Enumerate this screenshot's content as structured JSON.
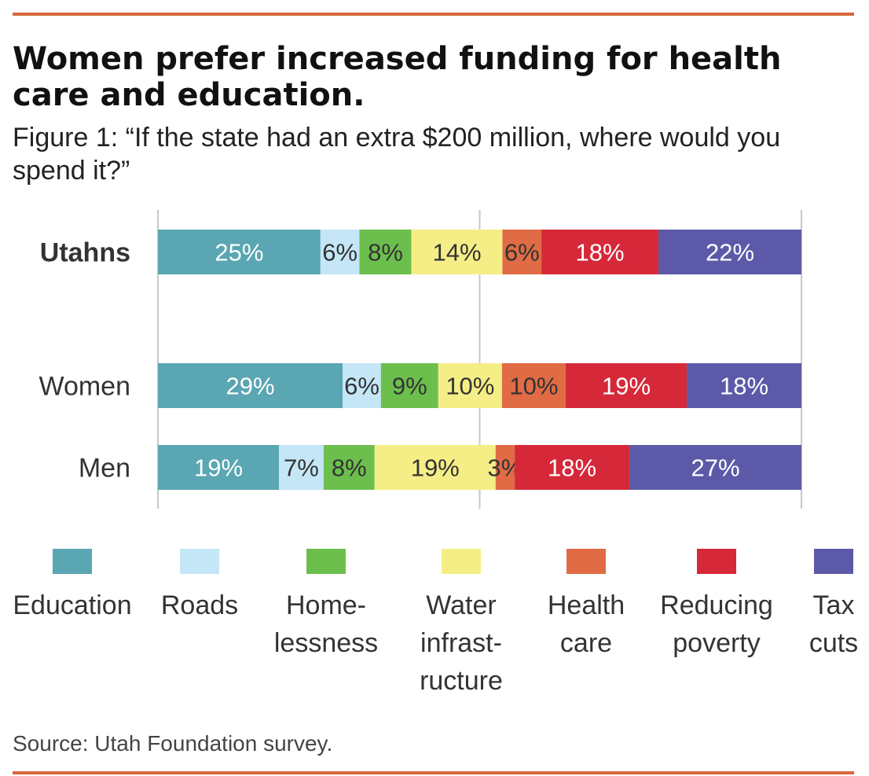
{
  "header": {
    "title": "Women prefer increased funding for health care and education.",
    "subtitle": "Figure 1: “If the state had an extra $200 million, where would you spend it?”"
  },
  "chart_data": {
    "type": "bar",
    "orientation": "horizontal",
    "stacked": true,
    "unit": "%",
    "categories": [
      "Utahns",
      "Women",
      "Men"
    ],
    "series": [
      {
        "name": "Education",
        "values": [
          25,
          29,
          19
        ],
        "color": "#5aa6b3",
        "label_color": "#ffffff"
      },
      {
        "name": "Roads",
        "values": [
          6,
          6,
          7
        ],
        "color": "#c4e6f7",
        "label_color": "#333333"
      },
      {
        "name": "Homelessness",
        "values": [
          8,
          9,
          8
        ],
        "color": "#6cbf4d",
        "label_color": "#333333"
      },
      {
        "name": "Water infrastructure",
        "values": [
          14,
          10,
          19
        ],
        "color": "#f5ee86",
        "label_color": "#333333"
      },
      {
        "name": "Health care",
        "values": [
          6,
          10,
          3
        ],
        "color": "#e06b44",
        "label_color": "#333333"
      },
      {
        "name": "Reducing poverty",
        "values": [
          18,
          19,
          18
        ],
        "color": "#d5293a",
        "label_color": "#ffffff"
      },
      {
        "name": "Tax cuts",
        "values": [
          22,
          18,
          27
        ],
        "color": "#5c5aa8",
        "label_color": "#ffffff"
      }
    ],
    "xlim": [
      0,
      100
    ],
    "grid": true,
    "legend_position": "bottom"
  },
  "legend": {
    "items": [
      {
        "lines": [
          "Education"
        ]
      },
      {
        "lines": [
          "Roads"
        ]
      },
      {
        "lines": [
          "Home-",
          "lessness"
        ]
      },
      {
        "lines": [
          "Water",
          "infrast-",
          "ructure"
        ]
      },
      {
        "lines": [
          "Health",
          "care"
        ]
      },
      {
        "lines": [
          "Reducing",
          "poverty"
        ]
      },
      {
        "lines": [
          "Tax",
          "cuts"
        ]
      }
    ]
  },
  "footer": {
    "source": "Source: Utah Foundation survey."
  }
}
